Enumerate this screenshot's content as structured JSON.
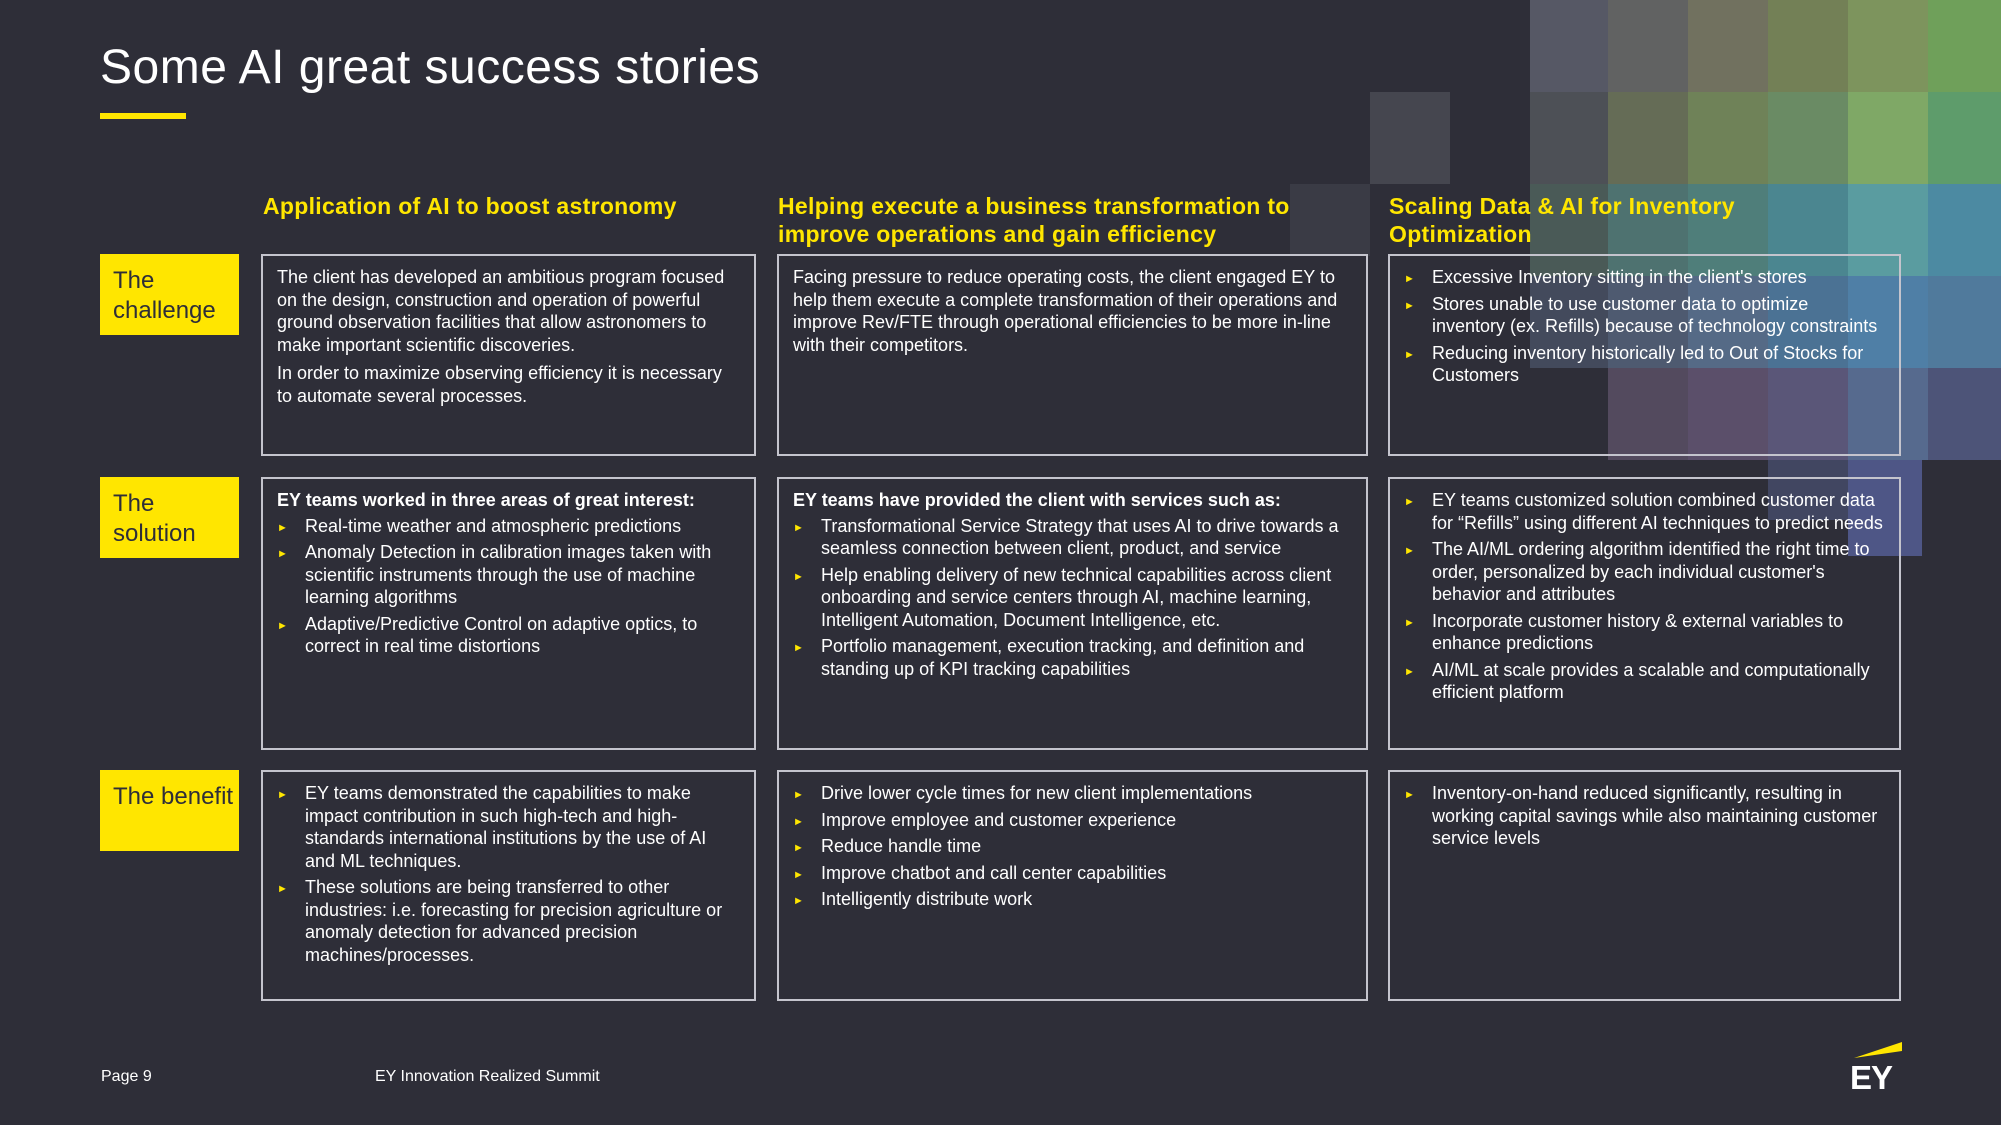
{
  "title": "Some AI great success stories",
  "columns": [
    {
      "header": "Application of AI to boost astronomy"
    },
    {
      "header": "Helping execute a business transformation to improve operations and gain efficiency"
    },
    {
      "header": "Scaling Data & AI for Inventory Optimization"
    }
  ],
  "rows": [
    {
      "label": "The challenge"
    },
    {
      "label": "The solution"
    },
    {
      "label": "The benefit"
    }
  ],
  "cells": {
    "challenge": {
      "astronomy": {
        "paragraphs": [
          "The client has developed an ambitious program focused on the design, construction and operation of powerful ground observation facilities that allow astronomers to make important scientific discoveries.",
          "In order to maximize observing efficiency it is necessary to automate several processes."
        ]
      },
      "business": {
        "paragraphs": [
          "Facing pressure to reduce operating costs, the client engaged EY to help them execute a complete transformation of their operations and improve Rev/FTE through operational efficiencies to be more in-line with their competitors."
        ]
      },
      "inventory": {
        "bullets": [
          "Excessive Inventory sitting in the client's stores",
          "Stores unable to use customer data to optimize inventory (ex. Refills) because of technology constraints",
          "Reducing inventory historically led to Out of Stocks for Customers"
        ]
      }
    },
    "solution": {
      "astronomy": {
        "lead": "EY  teams worked in three areas of great interest:",
        "bullets": [
          "Real-time weather and atmospheric predictions",
          "Anomaly Detection in calibration images taken with scientific instruments through the use of machine learning algorithms",
          "Adaptive/Predictive Control on adaptive optics, to correct in real time distortions"
        ]
      },
      "business": {
        "lead": "EY teams have provided the client with services such as:",
        "bullets": [
          "Transformational Service Strategy that uses AI to drive towards a seamless connection between client, product, and service",
          "Help enabling delivery of new technical capabilities across client onboarding and service centers through AI, machine learning, Intelligent Automation, Document Intelligence, etc.",
          "Portfolio management, execution tracking, and definition and standing up of KPI tracking capabilities"
        ]
      },
      "inventory": {
        "bullets": [
          "EY teams customized solution combined customer data for “Refills” using different AI techniques to predict needs",
          "The AI/ML ordering algorithm identified the right time to order, personalized by each individual customer's behavior and attributes",
          "Incorporate customer history & external variables to enhance predictions",
          "AI/ML at scale provides a scalable and computationally efficient platform"
        ]
      }
    },
    "benefit": {
      "astronomy": {
        "bullets": [
          "EY teams demonstrated the capabilities to make impact contribution in such high-tech and high-standards international institutions by the use of AI and ML techniques.",
          "These solutions are being transferred to other industries: i.e. forecasting for precision agriculture or anomaly detection for advanced precision machines/processes."
        ]
      },
      "business": {
        "bullets": [
          "Drive lower cycle times for new client implementations",
          "Improve employee and customer experience",
          "Reduce handle time",
          "Improve chatbot and call center capabilities",
          "Intelligently distribute work"
        ]
      },
      "inventory": {
        "bullets": [
          "Inventory-on-hand reduced significantly, resulting in working capital savings while also maintaining customer service levels"
        ]
      }
    }
  },
  "footer": {
    "page": "Page 9",
    "event": "EY Innovation Realized Summit",
    "logo_text": "EY"
  },
  "colors": {
    "background": "#2e2e38",
    "accent": "#ffe600",
    "border": "#c4c4cd",
    "text": "#ffffff"
  },
  "icons": {
    "bullet": "bullet-triangle-icon",
    "logo": "ey-logo-icon"
  }
}
